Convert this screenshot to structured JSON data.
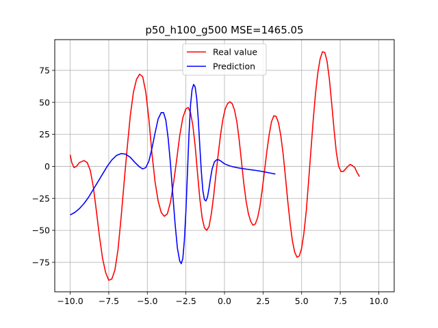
{
  "chart_data": {
    "type": "line",
    "title": "p50_h100_g500 MSE=1465.05",
    "xlabel": "",
    "ylabel": "",
    "xlim": [
      -11.0,
      11.0
    ],
    "ylim": [
      -98,
      99
    ],
    "xticks": [
      -10.0,
      -7.5,
      -5.0,
      -2.5,
      0.0,
      2.5,
      5.0,
      7.5,
      10.0
    ],
    "xtick_labels": [
      "−10.0",
      "−7.5",
      "−5.0",
      "−2.5",
      "0.0",
      "2.5",
      "5.0",
      "7.5",
      "10.0"
    ],
    "yticks": [
      -75,
      -50,
      -25,
      0,
      25,
      50,
      75
    ],
    "ytick_labels": [
      "−75",
      "−50",
      "−25",
      "0",
      "25",
      "50",
      "75"
    ],
    "grid": true,
    "legend_position": "top-center",
    "series": [
      {
        "name": "Real value",
        "color": "#ff0000",
        "points": [
          [
            -10.0,
            9
          ],
          [
            -9.9,
            3
          ],
          [
            -9.75,
            -1
          ],
          [
            -9.6,
            0
          ],
          [
            -9.4,
            3
          ],
          [
            -9.1,
            4.5
          ],
          [
            -8.9,
            3
          ],
          [
            -8.7,
            -3
          ],
          [
            -8.5,
            -16
          ],
          [
            -8.3,
            -35
          ],
          [
            -8.1,
            -55
          ],
          [
            -7.9,
            -72
          ],
          [
            -7.7,
            -83
          ],
          [
            -7.5,
            -89
          ],
          [
            -7.3,
            -88
          ],
          [
            -7.1,
            -81
          ],
          [
            -6.9,
            -65
          ],
          [
            -6.7,
            -40
          ],
          [
            -6.5,
            -12
          ],
          [
            -6.3,
            15
          ],
          [
            -6.1,
            40
          ],
          [
            -5.9,
            58
          ],
          [
            -5.7,
            68
          ],
          [
            -5.5,
            72
          ],
          [
            -5.3,
            70
          ],
          [
            -5.1,
            58
          ],
          [
            -4.9,
            37
          ],
          [
            -4.7,
            10
          ],
          [
            -4.5,
            -12
          ],
          [
            -4.3,
            -27
          ],
          [
            -4.1,
            -36
          ],
          [
            -3.9,
            -39
          ],
          [
            -3.7,
            -37
          ],
          [
            -3.5,
            -28
          ],
          [
            -3.3,
            -13
          ],
          [
            -3.1,
            5
          ],
          [
            -2.9,
            24
          ],
          [
            -2.7,
            38
          ],
          [
            -2.5,
            45
          ],
          [
            -2.35,
            46
          ],
          [
            -2.2,
            42
          ],
          [
            -2.05,
            32
          ],
          [
            -1.9,
            16
          ],
          [
            -1.75,
            -5
          ],
          [
            -1.6,
            -25
          ],
          [
            -1.45,
            -40
          ],
          [
            -1.3,
            -48
          ],
          [
            -1.15,
            -50
          ],
          [
            -1.0,
            -47
          ],
          [
            -0.85,
            -37
          ],
          [
            -0.7,
            -23
          ],
          [
            -0.55,
            -6
          ],
          [
            -0.4,
            10
          ],
          [
            -0.25,
            25
          ],
          [
            -0.1,
            37
          ],
          [
            0.05,
            45
          ],
          [
            0.2,
            49
          ],
          [
            0.35,
            50.5
          ],
          [
            0.5,
            49
          ],
          [
            0.65,
            44
          ],
          [
            0.8,
            35
          ],
          [
            0.95,
            21
          ],
          [
            1.1,
            4
          ],
          [
            1.25,
            -13
          ],
          [
            1.4,
            -27
          ],
          [
            1.55,
            -37
          ],
          [
            1.7,
            -43
          ],
          [
            1.85,
            -46
          ],
          [
            2.0,
            -45
          ],
          [
            2.15,
            -40
          ],
          [
            2.3,
            -31
          ],
          [
            2.45,
            -18
          ],
          [
            2.6,
            -3
          ],
          [
            2.75,
            12
          ],
          [
            2.9,
            25
          ],
          [
            3.05,
            35
          ],
          [
            3.2,
            39.5
          ],
          [
            3.35,
            39
          ],
          [
            3.5,
            34
          ],
          [
            3.65,
            24
          ],
          [
            3.8,
            10
          ],
          [
            3.95,
            -8
          ],
          [
            4.1,
            -27
          ],
          [
            4.25,
            -44
          ],
          [
            4.4,
            -58
          ],
          [
            4.55,
            -67
          ],
          [
            4.7,
            -71
          ],
          [
            4.85,
            -70
          ],
          [
            5.0,
            -64
          ],
          [
            5.15,
            -52
          ],
          [
            5.3,
            -35
          ],
          [
            5.45,
            -12
          ],
          [
            5.6,
            12
          ],
          [
            5.75,
            36
          ],
          [
            5.9,
            57
          ],
          [
            6.05,
            73
          ],
          [
            6.2,
            84
          ],
          [
            6.35,
            89.5
          ],
          [
            6.5,
            89
          ],
          [
            6.65,
            82
          ],
          [
            6.8,
            68
          ],
          [
            6.95,
            49
          ],
          [
            7.1,
            29
          ],
          [
            7.25,
            11
          ],
          [
            7.4,
            0
          ],
          [
            7.55,
            -4
          ],
          [
            7.7,
            -4
          ],
          [
            7.85,
            -2
          ],
          [
            8.0,
            0
          ],
          [
            8.15,
            1.5
          ],
          [
            8.3,
            0.5
          ],
          [
            8.45,
            -1
          ],
          [
            8.6,
            -5
          ],
          [
            8.75,
            -8
          ]
        ]
      },
      {
        "name": "Prediction",
        "color": "#0000ff",
        "points": [
          [
            -10.0,
            -38
          ],
          [
            -9.7,
            -36
          ],
          [
            -9.4,
            -33
          ],
          [
            -9.1,
            -29
          ],
          [
            -8.8,
            -24
          ],
          [
            -8.5,
            -18
          ],
          [
            -8.2,
            -12
          ],
          [
            -7.9,
            -6
          ],
          [
            -7.6,
            0
          ],
          [
            -7.3,
            5
          ],
          [
            -7.0,
            8.5
          ],
          [
            -6.7,
            10
          ],
          [
            -6.4,
            9.5
          ],
          [
            -6.1,
            7
          ],
          [
            -5.8,
            3
          ],
          [
            -5.5,
            -0.5
          ],
          [
            -5.3,
            -2
          ],
          [
            -5.1,
            -1
          ],
          [
            -4.9,
            4
          ],
          [
            -4.7,
            14
          ],
          [
            -4.5,
            26
          ],
          [
            -4.3,
            37
          ],
          [
            -4.1,
            42
          ],
          [
            -3.95,
            42
          ],
          [
            -3.8,
            36
          ],
          [
            -3.65,
            22
          ],
          [
            -3.5,
            2
          ],
          [
            -3.35,
            -22
          ],
          [
            -3.2,
            -45
          ],
          [
            -3.05,
            -64
          ],
          [
            -2.9,
            -74
          ],
          [
            -2.8,
            -76
          ],
          [
            -2.7,
            -72
          ],
          [
            -2.6,
            -58
          ],
          [
            -2.5,
            -35
          ],
          [
            -2.4,
            -5
          ],
          [
            -2.3,
            25
          ],
          [
            -2.2,
            48
          ],
          [
            -2.1,
            60
          ],
          [
            -2.0,
            64
          ],
          [
            -1.9,
            62
          ],
          [
            -1.8,
            53
          ],
          [
            -1.7,
            37
          ],
          [
            -1.6,
            16
          ],
          [
            -1.5,
            -4
          ],
          [
            -1.4,
            -19
          ],
          [
            -1.3,
            -26
          ],
          [
            -1.2,
            -27
          ],
          [
            -1.1,
            -24
          ],
          [
            -1.0,
            -17
          ],
          [
            -0.9,
            -9
          ],
          [
            -0.8,
            -2
          ],
          [
            -0.65,
            3.5
          ],
          [
            -0.5,
            5.2
          ],
          [
            -0.35,
            5
          ],
          [
            -0.2,
            3.8
          ],
          [
            0.0,
            2
          ],
          [
            0.3,
            0.5
          ],
          [
            0.6,
            -0.5
          ],
          [
            0.9,
            -1.2
          ],
          [
            1.2,
            -1.8
          ],
          [
            1.5,
            -2.3
          ],
          [
            1.8,
            -2.8
          ],
          [
            2.1,
            -3.3
          ],
          [
            2.4,
            -3.9
          ],
          [
            2.7,
            -4.6
          ],
          [
            3.0,
            -5.3
          ],
          [
            3.3,
            -6
          ]
        ]
      }
    ]
  }
}
